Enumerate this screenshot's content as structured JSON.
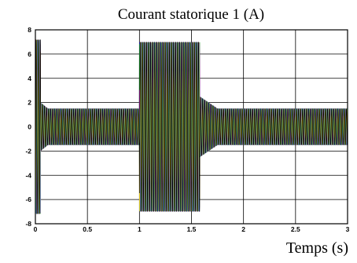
{
  "chart_data": {
    "type": "line",
    "title": "Courant statorique 1 (A)",
    "xlabel": "Temps (s)",
    "ylabel": "",
    "xlim": [
      0,
      3
    ],
    "ylim": [
      -8,
      8
    ],
    "x_ticks": [
      "0",
      "0.5",
      "1",
      "1.5",
      "2",
      "2.5",
      "3"
    ],
    "y_ticks": [
      "8",
      "6",
      "4",
      "2",
      "0",
      "-2",
      "-4",
      "-6",
      "-8"
    ],
    "grid": true,
    "signal": {
      "description_units": "ampere",
      "segments": [
        {
          "t_start": 0.0,
          "t_end": 0.05,
          "amplitude": 7.2
        },
        {
          "t_start": 0.05,
          "t_end": 0.12,
          "amplitude": 2.0
        },
        {
          "t_start": 0.12,
          "t_end": 1.0,
          "amplitude": 1.5
        },
        {
          "t_start": 1.0,
          "t_end": 1.5,
          "amplitude": 7.0
        },
        {
          "t_start": 1.5,
          "t_end": 1.58,
          "amplitude": 7.0
        },
        {
          "t_start": 1.58,
          "t_end": 1.75,
          "amplitude": 2.5
        },
        {
          "t_start": 1.75,
          "t_end": 3.0,
          "amplitude": 1.5
        }
      ]
    },
    "series_colors": [
      "#e8141a",
      "#1f2bd6",
      "#14a01a",
      "#d11ad1",
      "#1ad1d1",
      "#e0c014",
      "#000000"
    ]
  }
}
